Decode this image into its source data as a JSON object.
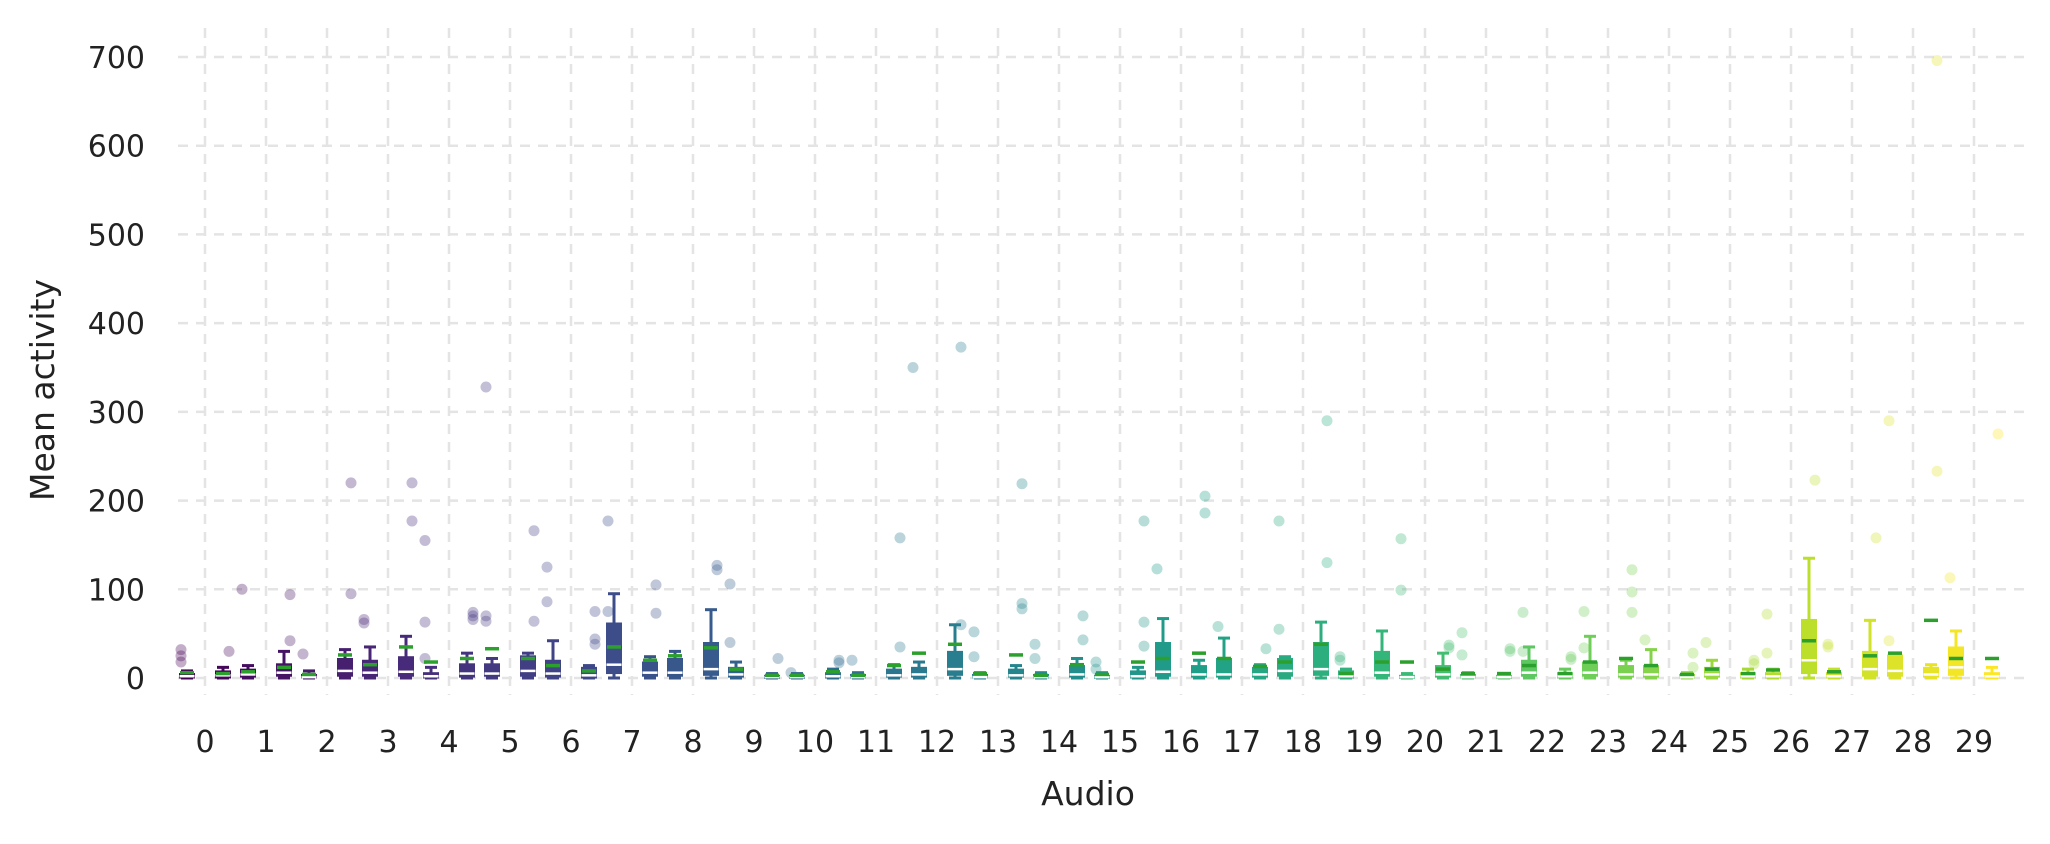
{
  "chart_data": {
    "type": "box",
    "xlabel": "Audio",
    "ylabel": "Mean activity",
    "ylim": [
      -10,
      730
    ],
    "yticks": [
      0,
      100,
      200,
      300,
      400,
      500,
      600,
      700
    ],
    "grid": true,
    "legend": "none",
    "colormap": [
      "#440154",
      "#482878",
      "#3e4989",
      "#31688e",
      "#26828e",
      "#1f9e89",
      "#35b779",
      "#6ece58",
      "#b5de2b",
      "#fde725"
    ],
    "mean_marker_color": "#2ca02c",
    "median_marker_color": "#ffffff",
    "categories": [
      "0",
      "1",
      "2",
      "3",
      "4",
      "5",
      "6",
      "7",
      "8",
      "9",
      "10",
      "11",
      "12",
      "13",
      "14",
      "15",
      "16",
      "17",
      "18",
      "19",
      "20",
      "21",
      "22",
      "23",
      "24",
      "25",
      "26",
      "27",
      "28",
      "29"
    ],
    "groups": [
      {
        "label": "0",
        "boxes": [
          {
            "q1": 0,
            "med": 2,
            "q3": 5,
            "lo": 0,
            "hi": 8,
            "mean": 6,
            "outliers": [
              32,
              25,
              18
            ]
          },
          {
            "q1": 0,
            "med": 3,
            "q3": 8,
            "lo": 0,
            "hi": 12,
            "mean": 5,
            "outliers": [
              30
            ]
          }
        ]
      },
      {
        "label": "1",
        "boxes": [
          {
            "q1": 1,
            "med": 4,
            "q3": 10,
            "lo": 0,
            "hi": 14,
            "mean": 7,
            "outliers": [
              100
            ]
          },
          {
            "q1": 2,
            "med": 6,
            "q3": 16,
            "lo": 0,
            "hi": 30,
            "mean": 12,
            "outliers": [
              94,
              42
            ]
          }
        ]
      },
      {
        "label": "2",
        "boxes": [
          {
            "q1": 0,
            "med": 1,
            "q3": 4,
            "lo": 0,
            "hi": 8,
            "mean": 4,
            "outliers": [
              27
            ]
          },
          {
            "q1": 2,
            "med": 8,
            "q3": 22,
            "lo": 0,
            "hi": 32,
            "mean": 26,
            "outliers": [
              220,
              95
            ]
          }
        ]
      },
      {
        "label": "3",
        "boxes": [
          {
            "q1": 2,
            "med": 6,
            "q3": 20,
            "lo": 0,
            "hi": 35,
            "mean": 15,
            "outliers": [
              66,
              62
            ]
          },
          {
            "q1": 2,
            "med": 7,
            "q3": 24,
            "lo": 0,
            "hi": 47,
            "mean": 35,
            "outliers": [
              220,
              177
            ]
          }
        ]
      },
      {
        "label": "4",
        "boxes": [
          {
            "q1": 0,
            "med": 2,
            "q3": 6,
            "lo": 0,
            "hi": 12,
            "mean": 18,
            "outliers": [
              155,
              63,
              22
            ]
          },
          {
            "q1": 1,
            "med": 5,
            "q3": 16,
            "lo": 0,
            "hi": 28,
            "mean": 22,
            "outliers": [
              74,
              70,
              66
            ]
          }
        ]
      },
      {
        "label": "5",
        "boxes": [
          {
            "q1": 2,
            "med": 5,
            "q3": 16,
            "lo": 0,
            "hi": 22,
            "mean": 33,
            "outliers": [
              328,
              70,
              64
            ]
          },
          {
            "q1": 2,
            "med": 8,
            "q3": 25,
            "lo": 0,
            "hi": 28,
            "mean": 22,
            "outliers": [
              166,
              64
            ]
          }
        ]
      },
      {
        "label": "6",
        "boxes": [
          {
            "q1": 1,
            "med": 5,
            "q3": 20,
            "lo": 0,
            "hi": 42,
            "mean": 14,
            "outliers": [
              125,
              86
            ]
          },
          {
            "q1": 0,
            "med": 3,
            "q3": 12,
            "lo": 0,
            "hi": 14,
            "mean": 8,
            "outliers": [
              75,
              44,
              38
            ]
          }
        ]
      },
      {
        "label": "7",
        "boxes": [
          {
            "q1": 5,
            "med": 15,
            "q3": 62,
            "lo": 0,
            "hi": 95,
            "mean": 35,
            "outliers": [
              177,
              75
            ]
          },
          {
            "q1": 2,
            "med": 6,
            "q3": 18,
            "lo": 0,
            "hi": 24,
            "mean": 20,
            "outliers": [
              105,
              73
            ]
          }
        ]
      },
      {
        "label": "8",
        "boxes": [
          {
            "q1": 2,
            "med": 6,
            "q3": 22,
            "lo": 0,
            "hi": 30,
            "mean": 25,
            "outliers": []
          },
          {
            "q1": 3,
            "med": 10,
            "q3": 40,
            "lo": 0,
            "hi": 77,
            "mean": 34,
            "outliers": [
              127,
              122
            ]
          }
        ]
      },
      {
        "label": "9",
        "boxes": [
          {
            "q1": 1,
            "med": 4,
            "q3": 12,
            "lo": 0,
            "hi": 18,
            "mean": 10,
            "outliers": [
              106,
              40
            ]
          },
          {
            "q1": 0,
            "med": 1,
            "q3": 3,
            "lo": 0,
            "hi": 5,
            "mean": 3,
            "outliers": [
              22
            ]
          }
        ]
      },
      {
        "label": "10",
        "boxes": [
          {
            "q1": 0,
            "med": 1,
            "q3": 3,
            "lo": 0,
            "hi": 5,
            "mean": 3,
            "outliers": [
              6
            ]
          },
          {
            "q1": 0,
            "med": 2,
            "q3": 6,
            "lo": 0,
            "hi": 10,
            "mean": 7,
            "outliers": [
              20,
              17
            ]
          }
        ]
      },
      {
        "label": "11",
        "boxes": [
          {
            "q1": 0,
            "med": 1,
            "q3": 4,
            "lo": 0,
            "hi": 6,
            "mean": 3,
            "outliers": [
              20
            ]
          },
          {
            "q1": 1,
            "med": 3,
            "q3": 10,
            "lo": 0,
            "hi": 15,
            "mean": 14,
            "outliers": [
              158,
              35
            ]
          }
        ]
      },
      {
        "label": "12",
        "boxes": [
          {
            "q1": 1,
            "med": 4,
            "q3": 12,
            "lo": 0,
            "hi": 18,
            "mean": 28,
            "outliers": [
              350
            ]
          },
          {
            "q1": 3,
            "med": 10,
            "q3": 30,
            "lo": 0,
            "hi": 60,
            "mean": 38,
            "outliers": [
              373,
              60
            ]
          }
        ]
      },
      {
        "label": "13",
        "boxes": [
          {
            "q1": 0,
            "med": 1,
            "q3": 4,
            "lo": 0,
            "hi": 6,
            "mean": 5,
            "outliers": [
              52,
              24
            ]
          },
          {
            "q1": 1,
            "med": 3,
            "q3": 10,
            "lo": 0,
            "hi": 14,
            "mean": 26,
            "outliers": [
              219,
              84,
              78
            ]
          }
        ]
      },
      {
        "label": "14",
        "boxes": [
          {
            "q1": 0,
            "med": 1,
            "q3": 4,
            "lo": 0,
            "hi": 6,
            "mean": 3,
            "outliers": [
              38,
              22
            ]
          },
          {
            "q1": 1,
            "med": 4,
            "q3": 14,
            "lo": 0,
            "hi": 22,
            "mean": 15,
            "outliers": [
              70,
              43
            ]
          }
        ]
      },
      {
        "label": "15",
        "boxes": [
          {
            "q1": 0,
            "med": 1,
            "q3": 3,
            "lo": 0,
            "hi": 6,
            "mean": 4,
            "outliers": [
              18,
              10
            ]
          },
          {
            "q1": 0,
            "med": 2,
            "q3": 8,
            "lo": 0,
            "hi": 12,
            "mean": 18,
            "outliers": [
              177,
              63,
              36
            ]
          }
        ]
      },
      {
        "label": "16",
        "boxes": [
          {
            "q1": 2,
            "med": 7,
            "q3": 40,
            "lo": 0,
            "hi": 67,
            "mean": 22,
            "outliers": [
              123
            ]
          },
          {
            "q1": 1,
            "med": 4,
            "q3": 14,
            "lo": 0,
            "hi": 20,
            "mean": 28,
            "outliers": [
              205,
              186
            ]
          }
        ]
      },
      {
        "label": "17",
        "boxes": [
          {
            "q1": 1,
            "med": 4,
            "q3": 22,
            "lo": 0,
            "hi": 45,
            "mean": 22,
            "outliers": [
              58
            ]
          },
          {
            "q1": 1,
            "med": 4,
            "q3": 12,
            "lo": 0,
            "hi": 15,
            "mean": 13,
            "outliers": [
              33
            ]
          }
        ]
      },
      {
        "label": "18",
        "boxes": [
          {
            "q1": 2,
            "med": 8,
            "q3": 22,
            "lo": 0,
            "hi": 24,
            "mean": 18,
            "outliers": [
              177,
              55
            ]
          },
          {
            "q1": 3,
            "med": 10,
            "q3": 40,
            "lo": 0,
            "hi": 63,
            "mean": 38,
            "outliers": [
              290,
              130
            ]
          }
        ]
      },
      {
        "label": "19",
        "boxes": [
          {
            "q1": 0,
            "med": 2,
            "q3": 8,
            "lo": 0,
            "hi": 10,
            "mean": 5,
            "outliers": [
              24,
              20
            ]
          },
          {
            "q1": 2,
            "med": 6,
            "q3": 30,
            "lo": 0,
            "hi": 53,
            "mean": 18,
            "outliers": []
          }
        ]
      },
      {
        "label": "20",
        "boxes": [
          {
            "q1": 0,
            "med": 1,
            "q3": 3,
            "lo": 0,
            "hi": 5,
            "mean": 18,
            "outliers": [
              157,
              99
            ]
          },
          {
            "q1": 1,
            "med": 4,
            "q3": 14,
            "lo": 0,
            "hi": 28,
            "mean": 10,
            "outliers": [
              37,
              34
            ]
          }
        ]
      },
      {
        "label": "21",
        "boxes": [
          {
            "q1": 0,
            "med": 1,
            "q3": 4,
            "lo": 0,
            "hi": 6,
            "mean": 5,
            "outliers": [
              51,
              26
            ]
          },
          {
            "q1": 0,
            "med": 1,
            "q3": 3,
            "lo": 0,
            "hi": 5,
            "mean": 5,
            "outliers": [
              33,
              30
            ]
          }
        ]
      },
      {
        "label": "22",
        "boxes": [
          {
            "q1": 2,
            "med": 6,
            "q3": 20,
            "lo": 0,
            "hi": 35,
            "mean": 14,
            "outliers": [
              74,
              30
            ]
          },
          {
            "q1": 0,
            "med": 2,
            "q3": 6,
            "lo": 0,
            "hi": 10,
            "mean": 5,
            "outliers": [
              24,
              21
            ]
          }
        ]
      },
      {
        "label": "23",
        "boxes": [
          {
            "q1": 2,
            "med": 6,
            "q3": 18,
            "lo": 0,
            "hi": 47,
            "mean": 18,
            "outliers": [
              75,
              34
            ]
          },
          {
            "q1": 1,
            "med": 4,
            "q3": 14,
            "lo": 0,
            "hi": 20,
            "mean": 22,
            "outliers": [
              122,
              97,
              74
            ]
          }
        ]
      },
      {
        "label": "24",
        "boxes": [
          {
            "q1": 1,
            "med": 4,
            "q3": 14,
            "lo": 0,
            "hi": 32,
            "mean": 14,
            "outliers": [
              43
            ]
          },
          {
            "q1": 0,
            "med": 1,
            "q3": 4,
            "lo": 0,
            "hi": 6,
            "mean": 4,
            "outliers": [
              28,
              12
            ]
          }
        ]
      },
      {
        "label": "25",
        "boxes": [
          {
            "q1": 1,
            "med": 4,
            "q3": 12,
            "lo": 0,
            "hi": 20,
            "mean": 10,
            "outliers": [
              40
            ]
          },
          {
            "q1": 0,
            "med": 2,
            "q3": 6,
            "lo": 0,
            "hi": 10,
            "mean": 5,
            "outliers": [
              20,
              16
            ]
          }
        ]
      },
      {
        "label": "26",
        "boxes": [
          {
            "q1": 0,
            "med": 2,
            "q3": 6,
            "lo": 0,
            "hi": 10,
            "mean": 9,
            "outliers": [
              72,
              28
            ]
          },
          {
            "q1": 5,
            "med": 20,
            "q3": 66,
            "lo": 0,
            "hi": 135,
            "mean": 42,
            "outliers": [
              223
            ]
          }
        ]
      },
      {
        "label": "27",
        "boxes": [
          {
            "q1": 0,
            "med": 2,
            "q3": 6,
            "lo": 0,
            "hi": 10,
            "mean": 7,
            "outliers": [
              38,
              35
            ]
          },
          {
            "q1": 2,
            "med": 10,
            "q3": 30,
            "lo": 0,
            "hi": 65,
            "mean": 25,
            "outliers": [
              158
            ]
          }
        ]
      },
      {
        "label": "28",
        "boxes": [
          {
            "q1": 2,
            "med": 8,
            "q3": 26,
            "lo": 0,
            "hi": 28,
            "mean": 28,
            "outliers": [
              290,
              42
            ]
          },
          {
            "q1": 1,
            "med": 4,
            "q3": 12,
            "lo": 0,
            "hi": 15,
            "mean": 65,
            "outliers": [
              696,
              233
            ]
          }
        ]
      },
      {
        "label": "29",
        "boxes": [
          {
            "q1": 3,
            "med": 12,
            "q3": 35,
            "lo": 0,
            "hi": 53,
            "mean": 22,
            "outliers": [
              113
            ]
          },
          {
            "q1": 0,
            "med": 2,
            "q3": 6,
            "lo": 0,
            "hi": 12,
            "mean": 22,
            "outliers": [
              275
            ]
          }
        ]
      }
    ]
  }
}
